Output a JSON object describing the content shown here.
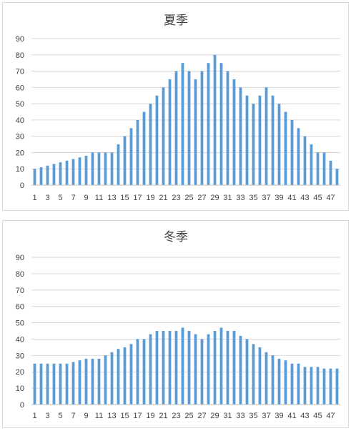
{
  "colors": {
    "bar": "#5b9bd5",
    "grid": "#d9d9d9",
    "axis": "#bfbfbf",
    "text": "#404040"
  },
  "chart_data": [
    {
      "type": "bar",
      "title": "夏季",
      "xlabel": "",
      "ylabel": "",
      "ylim": [
        0,
        90
      ],
      "yticks": [
        0,
        10,
        20,
        30,
        40,
        50,
        60,
        70,
        80,
        90
      ],
      "grid": true,
      "legend": "none",
      "categories": [
        1,
        2,
        3,
        4,
        5,
        6,
        7,
        8,
        9,
        10,
        11,
        12,
        13,
        14,
        15,
        16,
        17,
        18,
        19,
        20,
        21,
        22,
        23,
        24,
        25,
        26,
        27,
        28,
        29,
        30,
        31,
        32,
        33,
        34,
        35,
        36,
        37,
        38,
        39,
        40,
        41,
        42,
        43,
        44,
        45,
        46,
        47,
        48
      ],
      "xtick_labels": [
        "1",
        "3",
        "5",
        "7",
        "9",
        "11",
        "13",
        "15",
        "17",
        "19",
        "21",
        "23",
        "25",
        "27",
        "29",
        "31",
        "33",
        "35",
        "37",
        "39",
        "41",
        "43",
        "45",
        "47"
      ],
      "values": [
        10,
        11,
        12,
        13,
        14,
        15,
        16,
        17,
        18,
        20,
        20,
        20,
        20,
        25,
        30,
        35,
        40,
        45,
        50,
        55,
        60,
        65,
        70,
        75,
        70,
        65,
        70,
        75,
        80,
        75,
        70,
        65,
        60,
        55,
        50,
        55,
        60,
        55,
        50,
        45,
        40,
        35,
        30,
        25,
        20,
        20,
        15,
        10
      ]
    },
    {
      "type": "bar",
      "title": "冬季",
      "xlabel": "",
      "ylabel": "",
      "ylim": [
        0,
        90
      ],
      "yticks": [
        0,
        10,
        20,
        30,
        40,
        50,
        60,
        70,
        80,
        90
      ],
      "grid": true,
      "legend": "none",
      "categories": [
        1,
        2,
        3,
        4,
        5,
        6,
        7,
        8,
        9,
        10,
        11,
        12,
        13,
        14,
        15,
        16,
        17,
        18,
        19,
        20,
        21,
        22,
        23,
        24,
        25,
        26,
        27,
        28,
        29,
        30,
        31,
        32,
        33,
        34,
        35,
        36,
        37,
        38,
        39,
        40,
        41,
        42,
        43,
        44,
        45,
        46,
        47,
        48
      ],
      "xtick_labels": [
        "1",
        "3",
        "5",
        "7",
        "9",
        "11",
        "13",
        "15",
        "17",
        "19",
        "21",
        "23",
        "25",
        "27",
        "29",
        "31",
        "33",
        "35",
        "37",
        "39",
        "41",
        "43",
        "45",
        "47"
      ],
      "values": [
        25,
        25,
        25,
        25,
        25,
        25,
        26,
        27,
        28,
        28,
        28,
        30,
        32,
        34,
        35,
        37,
        40,
        40,
        43,
        45,
        45,
        45,
        45,
        47,
        45,
        43,
        40,
        43,
        45,
        47,
        45,
        45,
        42,
        40,
        37,
        35,
        32,
        30,
        28,
        27,
        25,
        25,
        23,
        23,
        23,
        22,
        22,
        22
      ]
    }
  ]
}
